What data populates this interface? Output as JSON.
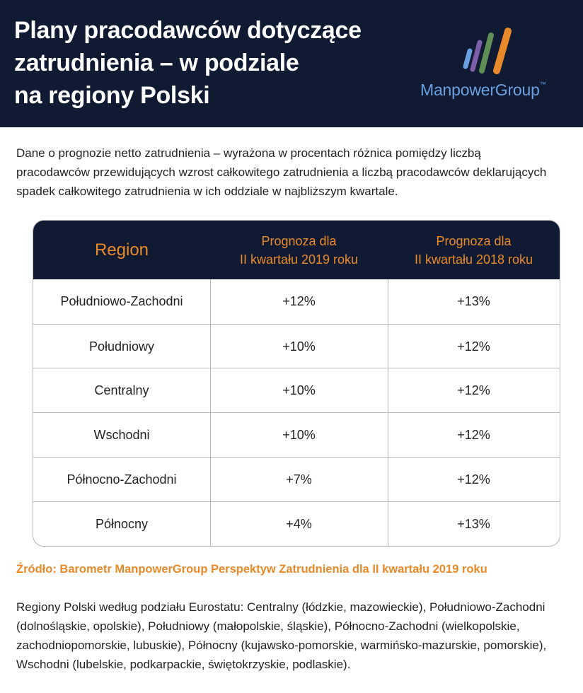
{
  "header": {
    "title_lines": [
      "Plany pracodawców dotyczące",
      "zatrudnienia – w podziale",
      "na regiony Polski"
    ],
    "logo": {
      "text": "ManpowerGroup",
      "trademark": "™",
      "bar_colors": [
        "#6aa0e0",
        "#7c5fa8",
        "#5f8f55",
        "#e98a2a"
      ]
    }
  },
  "intro_lines": [
    "Dane o prognozie netto zatrudnienia – wyrażona w procentach różnica pomiędzy liczbą",
    "pracodawców przewidujących wzrost całkowitego zatrudnienia a liczbą pracodawców deklarujących",
    "spadek całkowitego zatrudnienia w ich oddziale w najbliższym kwartale."
  ],
  "table": {
    "headers": [
      {
        "lines": [
          "Region"
        ]
      },
      {
        "lines": [
          "Prognoza dla",
          "II kwartału 2019 roku"
        ]
      },
      {
        "lines": [
          "Prognoza dla",
          "II kwartału 2018 roku"
        ]
      }
    ],
    "rows": [
      [
        "Południowo-Zachodni",
        "+12%",
        "+13%"
      ],
      [
        "Południowy",
        "+10%",
        "+12%"
      ],
      [
        "Centralny",
        "+10%",
        "+12%"
      ],
      [
        "Wschodni",
        "+10%",
        "+12%"
      ],
      [
        "Północno-Zachodni",
        "+7%",
        "+12%"
      ],
      [
        "Północny",
        "+4%",
        "+13%"
      ]
    ]
  },
  "source": "Źródło: Barometr ManpowerGroup Perspektyw Zatrudnienia dla II kwartału 2019 roku",
  "note_lines": [
    "Regiony Polski według podziału Eurostatu: Centralny (łódzkie, mazowieckie), Południowo-Zachodni",
    "(dolnośląskie, opolskie), Południowy (małopolskie, śląskie), Północno-Zachodni (wielkopolskie,",
    "zachodniopomorskie, lubuskie), Północny (kujawsko-pomorskie, warmińsko-mazurskie, pomorskie),",
    "Wschodni (lubelskie, podkarpackie, świętokrzyskie, podlaskie)."
  ],
  "colors": {
    "navy": "#111a33",
    "orange": "#e98a2a",
    "logo_blue": "#6aa0e0"
  }
}
